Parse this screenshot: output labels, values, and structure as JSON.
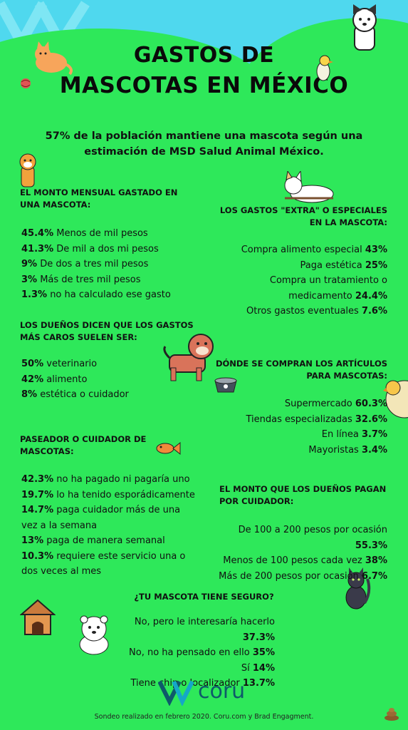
{
  "header": {
    "title_line1": "GASTOS DE",
    "title_line2": "MASCOTAS EN MÉXICO"
  },
  "intro": "57% de la población mantiene una mascota según una estimación de MSD Salud Animal México.",
  "monthly": {
    "heading": "EL MONTO MENSUAL GASTADO EN UNA MASCOTA:",
    "items": [
      {
        "value": "45.4%",
        "text": " Menos de mil pesos"
      },
      {
        "value": "41.3%",
        "text": " De mil a dos mi pesos"
      },
      {
        "value": "9%",
        "text": " De dos a tres mil pesos"
      },
      {
        "value": "3%",
        "text": " Más de tres mil pesos"
      },
      {
        "value": "1.3%",
        "text": " no ha calculado ese gasto"
      }
    ]
  },
  "extra": {
    "heading": "LOS GASTOS \"EXTRA\" O ESPECIALES EN LA MASCOTA:",
    "items": [
      {
        "text": "Compra alimento especial ",
        "value": "43%"
      },
      {
        "text": "Paga estética ",
        "value": "25%"
      },
      {
        "text": "Compra un tratamiento o",
        "value": ""
      },
      {
        "text": "medicamento ",
        "value": "24.4%"
      },
      {
        "text": "Otros gastos eventuales ",
        "value": "7.6%"
      }
    ]
  },
  "expensive": {
    "heading": "LOS DUEÑOS DICEN QUE LOS GASTOS MÁS CAROS SUELEN SER:",
    "items": [
      {
        "value": "50%",
        "text": " veterinario"
      },
      {
        "value": "42%",
        "text": " alimento"
      },
      {
        "value": "8%",
        "text": " estética o cuidador"
      }
    ]
  },
  "where": {
    "heading": "DÓNDE SE COMPRAN LOS ARTÍCULOS PARA MASCOTAS:",
    "items": [
      {
        "text": "Supermercado ",
        "value": "60.3%"
      },
      {
        "text": "Tiendas especializadas ",
        "value": "32.6%"
      },
      {
        "text": "En línea ",
        "value": "3.7%"
      },
      {
        "text": "Mayoristas ",
        "value": "3.4%"
      }
    ]
  },
  "walker": {
    "heading": "PASEADOR O CUIDADOR DE MASCOTAS:",
    "items": [
      {
        "value": "42.3%",
        "text": " no ha pagado ni pagaría uno"
      },
      {
        "value": "19.7%",
        "text": " lo ha tenido esporádicamente"
      },
      {
        "value": "14.7%",
        "text": " paga cuidador más de una"
      },
      {
        "value": "",
        "text": "vez a la semana"
      },
      {
        "value": "13%",
        "text": " paga de manera semanal"
      },
      {
        "value": "10.3%",
        "text": " requiere este servicio una o"
      },
      {
        "value": "",
        "text": "dos veces al mes"
      }
    ]
  },
  "caretaker": {
    "heading": "EL MONTO QUE LOS DUEÑOS PAGAN POR CUIDADOR:",
    "items": [
      {
        "text": "De 100 a 200 pesos por ocasión ",
        "value": "55.3%"
      },
      {
        "text": "Menos de 100 pesos cada vez ",
        "value": "38%"
      },
      {
        "text": "Más de 200 pesos por ocasión ",
        "value": "6.7%"
      }
    ]
  },
  "insurance": {
    "heading": "¿TU MASCOTA TIENE SEGURO?",
    "items": [
      {
        "text": "No, pero le interesaría hacerlo ",
        "value": "37.3%"
      },
      {
        "text": "No, no ha pensado en ello ",
        "value": "35%"
      },
      {
        "text": "Sí ",
        "value": "14%"
      },
      {
        "text": "Tiene chip o localizador ",
        "value": "13.7%"
      }
    ]
  },
  "brand": {
    "logo_text": "coru",
    "color": "#0e5a6a"
  },
  "footer": "Sondeo realizado en febrero 2020. Coru.com y Brad Engagment.",
  "colors": {
    "background": "#2ee85a",
    "sky": "#4fd8ee",
    "text": "#111111"
  },
  "icons": [
    "cat-icon",
    "dog-icon",
    "bird-icon",
    "fish-icon",
    "pet-bowl-icon",
    "doghouse-icon",
    "bear-puppy-icon",
    "black-cat-icon",
    "poop-icon",
    "yarn-ball-icon"
  ]
}
